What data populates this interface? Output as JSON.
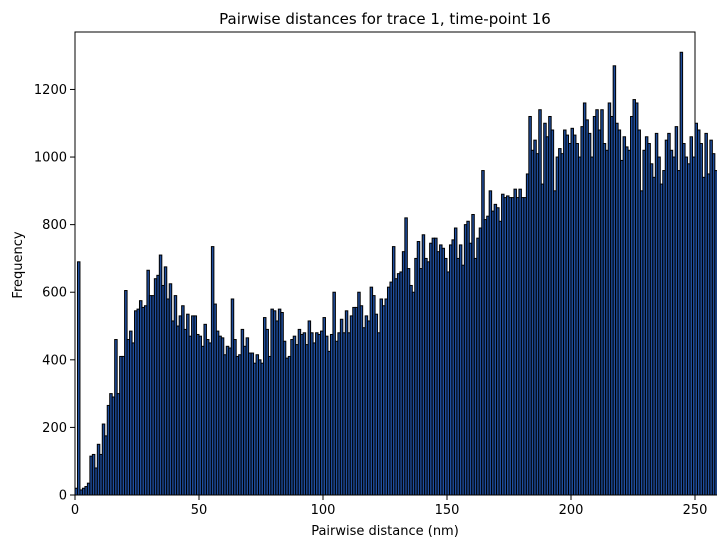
{
  "chart_data": {
    "type": "bar",
    "title": "Pairwise distances for trace 1, time-point 16",
    "xlabel": "Pairwise distance (nm)",
    "ylabel": "Frequency",
    "xlim": [
      0,
      250
    ],
    "ylim": [
      0,
      1370
    ],
    "xticks": [
      0,
      50,
      100,
      150,
      200,
      250
    ],
    "yticks": [
      0,
      200,
      400,
      600,
      800,
      1000,
      1200
    ],
    "bin_width": 1,
    "bar_color": "#1f4e9e",
    "edge_color": "#000000",
    "grid": false,
    "values": [
      20,
      690,
      15,
      20,
      25,
      35,
      115,
      120,
      80,
      150,
      120,
      210,
      175,
      265,
      300,
      290,
      460,
      300,
      410,
      410,
      605,
      460,
      485,
      450,
      545,
      550,
      575,
      555,
      560,
      665,
      590,
      590,
      640,
      650,
      710,
      620,
      675,
      580,
      625,
      515,
      590,
      500,
      530,
      560,
      490,
      535,
      470,
      530,
      530,
      475,
      470,
      440,
      505,
      460,
      450,
      735,
      565,
      485,
      470,
      465,
      415,
      440,
      435,
      580,
      460,
      410,
      415,
      490,
      440,
      465,
      420,
      420,
      390,
      415,
      400,
      390,
      525,
      490,
      410,
      550,
      545,
      515,
      550,
      540,
      455,
      405,
      410,
      460,
      470,
      445,
      490,
      475,
      480,
      445,
      515,
      480,
      450,
      480,
      475,
      485,
      525,
      470,
      425,
      475,
      600,
      455,
      480,
      520,
      480,
      545,
      480,
      530,
      555,
      555,
      600,
      560,
      495,
      530,
      515,
      615,
      590,
      535,
      480,
      580,
      560,
      580,
      615,
      630,
      735,
      640,
      655,
      660,
      720,
      820,
      670,
      620,
      600,
      700,
      750,
      670,
      770,
      700,
      690,
      745,
      760,
      760,
      720,
      740,
      730,
      700,
      660,
      740,
      755,
      790,
      700,
      740,
      680,
      800,
      810,
      745,
      830,
      700,
      760,
      790,
      960,
      815,
      825,
      900,
      840,
      860,
      850,
      810,
      890,
      880,
      885,
      880,
      880,
      905,
      880,
      905,
      880,
      880,
      950,
      1120,
      1020,
      1050,
      1010,
      1140,
      920,
      1100,
      1060,
      1120,
      1080,
      900,
      1000,
      1025,
      1010,
      1080,
      1065,
      1040,
      1085,
      1065,
      1040,
      1000,
      1090,
      1160,
      1110,
      1070,
      1000,
      1120,
      1140,
      1080,
      1140,
      1040,
      1020,
      1160,
      1120,
      1270,
      1100,
      1080,
      990,
      1060,
      1030,
      1020,
      1120,
      1170,
      1160,
      1080,
      900,
      1020,
      1060,
      1040,
      980,
      940,
      1070,
      1000,
      920,
      960,
      1050,
      1070,
      1020,
      1000,
      1090,
      960,
      1310,
      1040,
      1000,
      980,
      1060,
      1000,
      1100,
      1080,
      1040,
      940,
      1070,
      950,
      1050,
      1010,
      960
    ]
  }
}
